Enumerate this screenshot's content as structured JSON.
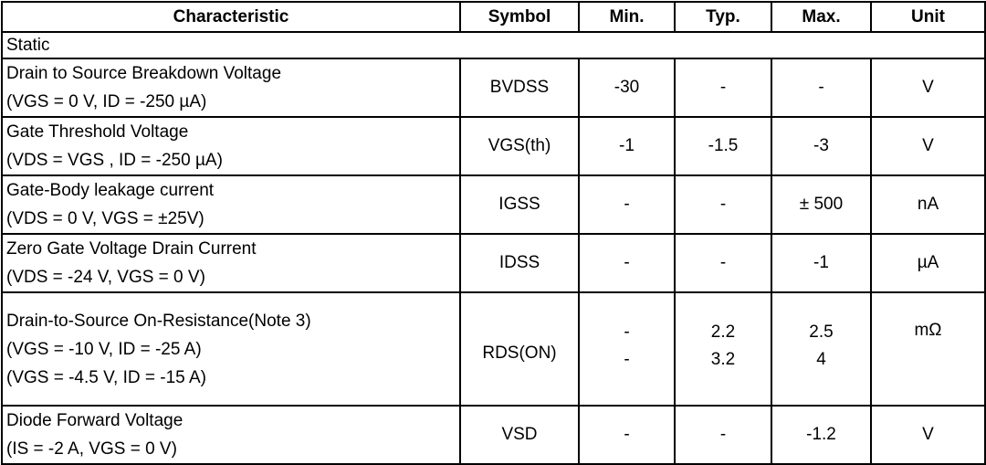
{
  "headers": [
    "Characteristic",
    "Symbol",
    "Min.",
    "Typ.",
    "Max.",
    "Unit"
  ],
  "section": "Static",
  "rows": [
    {
      "name": "Drain to Source Breakdown Voltage",
      "cond": "(VGS = 0 V, ID = -250 µA)",
      "symbol": "BVDSS",
      "min": "-30",
      "typ": "-",
      "max": "-",
      "unit": "V"
    },
    {
      "name": "Gate Threshold Voltage",
      "cond": "(VDS = VGS , ID = -250 µA)",
      "symbol": "VGS(th)",
      "min": "-1",
      "typ": "-1.5",
      "max": "-3",
      "unit": "V"
    },
    {
      "name": "Gate-Body leakage current",
      "cond": "(VDS = 0 V, VGS = ±25V)",
      "symbol": "IGSS",
      "min": "-",
      "typ": "-",
      "max": "± 500",
      "unit": "nA"
    },
    {
      "name": "Zero Gate Voltage Drain Current",
      "cond": "(VDS = -24 V, VGS = 0 V)",
      "symbol": "IDSS",
      "min": "-",
      "typ": "-",
      "max": "-1",
      "unit": "µA"
    },
    {
      "name": "Diode Forward Voltage",
      "cond": "(IS = -2 A, VGS = 0 V)",
      "symbol": "VSD",
      "min": "-",
      "typ": "-",
      "max": "-1.2",
      "unit": "V"
    }
  ],
  "rds": {
    "name": "Drain-to-Source On-Resistance(Note 3)",
    "cond1": "(VGS = -10 V, ID = -25 A)",
    "cond2": "(VGS = -4.5 V, ID = -15 A)",
    "symbol": "RDS(ON)",
    "min1": "-",
    "min2": "-",
    "typ1": "2.2",
    "typ2": "3.2",
    "max1": "2.5",
    "max2": "4",
    "unit": "mΩ"
  }
}
